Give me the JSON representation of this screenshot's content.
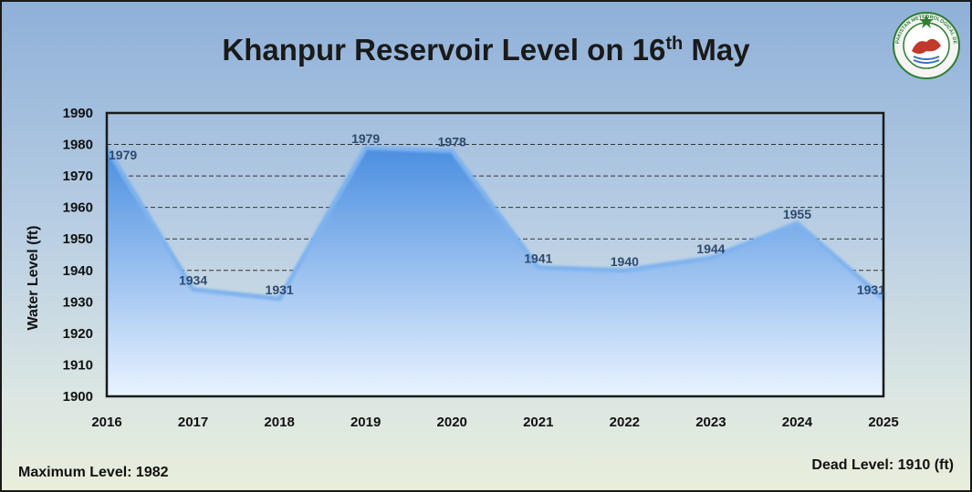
{
  "chart_data": {
    "type": "area",
    "title_main": "Khanpur Reservoir Level on 16",
    "title_sup": "th",
    "title_end": " May",
    "ylabel": "Water Level (ft)",
    "xlabel": "",
    "x": [
      "2016",
      "2017",
      "2018",
      "2019",
      "2020",
      "2021",
      "2022",
      "2023",
      "2024",
      "2025"
    ],
    "values": [
      1979,
      1934,
      1931,
      1979,
      1978,
      1941,
      1940,
      1944,
      1955,
      1931
    ],
    "ylim": [
      1900,
      1990
    ],
    "yticks": [
      1900,
      1910,
      1920,
      1930,
      1940,
      1950,
      1960,
      1970,
      1980,
      1990
    ],
    "grid": "horizontal-dashed",
    "colors": {
      "fill_top": "#4a8ee0",
      "fill_bottom": "#eaf3ff",
      "line": "#7fb3ee"
    }
  },
  "footer": {
    "max_level": "Maximum Level: 1982",
    "dead_level": "Dead Level: 1910 (ft)"
  },
  "logo": {
    "icon": "pakistan-meteorological-department-logo",
    "text": "PAKISTAN METEOROLOGICAL DEPARTMENT"
  }
}
